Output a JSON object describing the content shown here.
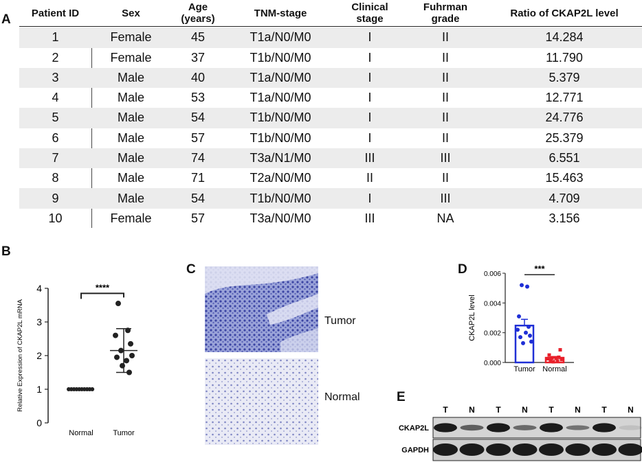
{
  "panels": {
    "a": "A",
    "b": "B",
    "c": "C",
    "d": "D",
    "e": "E"
  },
  "table": {
    "headers": [
      "Patient ID",
      "Sex",
      "Age\n(years)",
      "TNM-stage",
      "Clinical\nstage",
      "Fuhrman\ngrade",
      "Ratio of CKAP2L level"
    ],
    "header_lines": [
      [
        "Patient ID"
      ],
      [
        "Sex"
      ],
      [
        "Age",
        "(years)"
      ],
      [
        "TNM-stage"
      ],
      [
        "Clinical",
        "stage"
      ],
      [
        "Fuhrman",
        "grade"
      ],
      [
        "Ratio of CKAP2L level"
      ]
    ],
    "rows": [
      [
        "1",
        "Female",
        "45",
        "T1a/N0/M0",
        "I",
        "II",
        "14.284"
      ],
      [
        "2",
        "Female",
        "37",
        "T1b/N0/M0",
        "I",
        "II",
        "11.790"
      ],
      [
        "3",
        "Male",
        "40",
        "T1a/N0/M0",
        "I",
        "II",
        "5.379"
      ],
      [
        "4",
        "Male",
        "53",
        "T1a/N0/M0",
        "I",
        "II",
        "12.771"
      ],
      [
        "5",
        "Male",
        "54",
        "T1b/N0/M0",
        "I",
        "II",
        "24.776"
      ],
      [
        "6",
        "Male",
        "57",
        "T1b/N0/M0",
        "I",
        "II",
        "25.379"
      ],
      [
        "7",
        "Male",
        "74",
        "T3a/N1/M0",
        "III",
        "III",
        "6.551"
      ],
      [
        "8",
        "Male",
        "71",
        "T2a/N0/M0",
        "II",
        "II",
        "15.463"
      ],
      [
        "9",
        "Male",
        "54",
        "T1b/N0/M0",
        "I",
        "III",
        "4.709"
      ],
      [
        "10",
        "Female",
        "57",
        "T3a/N0/M0",
        "III",
        "NA",
        "3.156"
      ]
    ]
  },
  "chart_data": [
    {
      "type": "scatter",
      "panel": "B",
      "ylabel": "Relative Expression of CKAP2L mRNA",
      "categories": [
        "Normal",
        "Tumor"
      ],
      "yticks": [
        "0",
        "1",
        "2",
        "3",
        "4"
      ],
      "ylim": [
        0,
        4
      ],
      "significance": "****",
      "series": [
        {
          "category": "Normal",
          "values": [
            1,
            1,
            1,
            1,
            1,
            1,
            1,
            1,
            1,
            1
          ]
        },
        {
          "category": "Tumor",
          "values": [
            3.55,
            2.75,
            2.6,
            2.35,
            2.15,
            2.0,
            1.95,
            1.85,
            1.7,
            1.5
          ]
        }
      ],
      "mean": {
        "Tumor": 2.15,
        "Normal": 1.0
      },
      "sd": {
        "Tumor": 0.65
      }
    },
    {
      "type": "bar",
      "panel": "D",
      "ylabel": "CKAP2L level",
      "categories": [
        "Tumor",
        "Normal"
      ],
      "yticks": [
        "0.000",
        "0.002",
        "0.004",
        "0.006"
      ],
      "ylim": [
        0,
        0.006
      ],
      "significance": "***",
      "values": [
        0.00248,
        0.00032
      ],
      "sem": [
        0.00042,
        8e-05
      ],
      "colors": [
        "#1f2fd6",
        "#e8202a"
      ],
      "points": {
        "Tumor": [
          0.0052,
          0.0051,
          0.0031,
          0.0024,
          0.0022,
          0.002,
          0.0018,
          0.0017,
          0.0014,
          0.0013
        ],
        "Normal": [
          0.00085,
          0.0005,
          0.00035,
          0.0003,
          0.00028,
          0.00025,
          0.0002,
          0.00015,
          0.0001,
          5e-05
        ]
      }
    }
  ],
  "panel_c": {
    "labels": [
      "Tumor",
      "Normal"
    ]
  },
  "panel_e": {
    "lanes": [
      "T",
      "N",
      "T",
      "N",
      "T",
      "N",
      "T",
      "N"
    ],
    "rows": [
      "CKAP2L",
      "GAPDH"
    ],
    "ckap2l_intensity": [
      0.95,
      0.6,
      0.95,
      0.55,
      0.95,
      0.5,
      0.95,
      0.1
    ]
  }
}
